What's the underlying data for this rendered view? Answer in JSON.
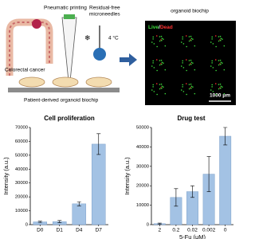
{
  "illustration": {
    "pneumatic": "Pneumatic printing",
    "microneedles": "Residual-free",
    "microneedles2": "microneedles",
    "temperature": "4 °C",
    "cancer": "Colorectal cancer",
    "biochip": "Patient-derived  organoid biochip"
  },
  "image": {
    "title": "organoid biochip",
    "live": "Live",
    "separator": "/",
    "dead": "Dead",
    "scale": "1000 μm"
  },
  "chart_data": [
    {
      "type": "bar",
      "title": "Cell proliferation",
      "y_label": "Intensity (a.u.)",
      "categories": [
        "D0",
        "D1",
        "D4",
        "D7"
      ],
      "values": [
        2000,
        2200,
        15000,
        58000
      ],
      "errors": [
        500,
        800,
        1500,
        7500
      ],
      "color": "#a3c2e4",
      "ylim": [
        0,
        70000
      ],
      "yticks": [
        0,
        10000,
        20000,
        30000,
        40000,
        50000,
        60000,
        70000
      ]
    },
    {
      "type": "bar",
      "title": "Drug test",
      "y_label": "Intensity (a.u.)",
      "x_label": "5-Fu (μM)",
      "categories": [
        "2",
        "0.2",
        "0.02",
        "0.002",
        "0"
      ],
      "values": [
        500,
        14000,
        17000,
        26000,
        45500
      ],
      "errors": [
        300,
        4500,
        3000,
        9000,
        4500
      ],
      "color": "#a3c2e4",
      "ylim": [
        0,
        50000
      ],
      "yticks": [
        0,
        10000,
        20000,
        30000,
        40000,
        50000
      ]
    }
  ]
}
